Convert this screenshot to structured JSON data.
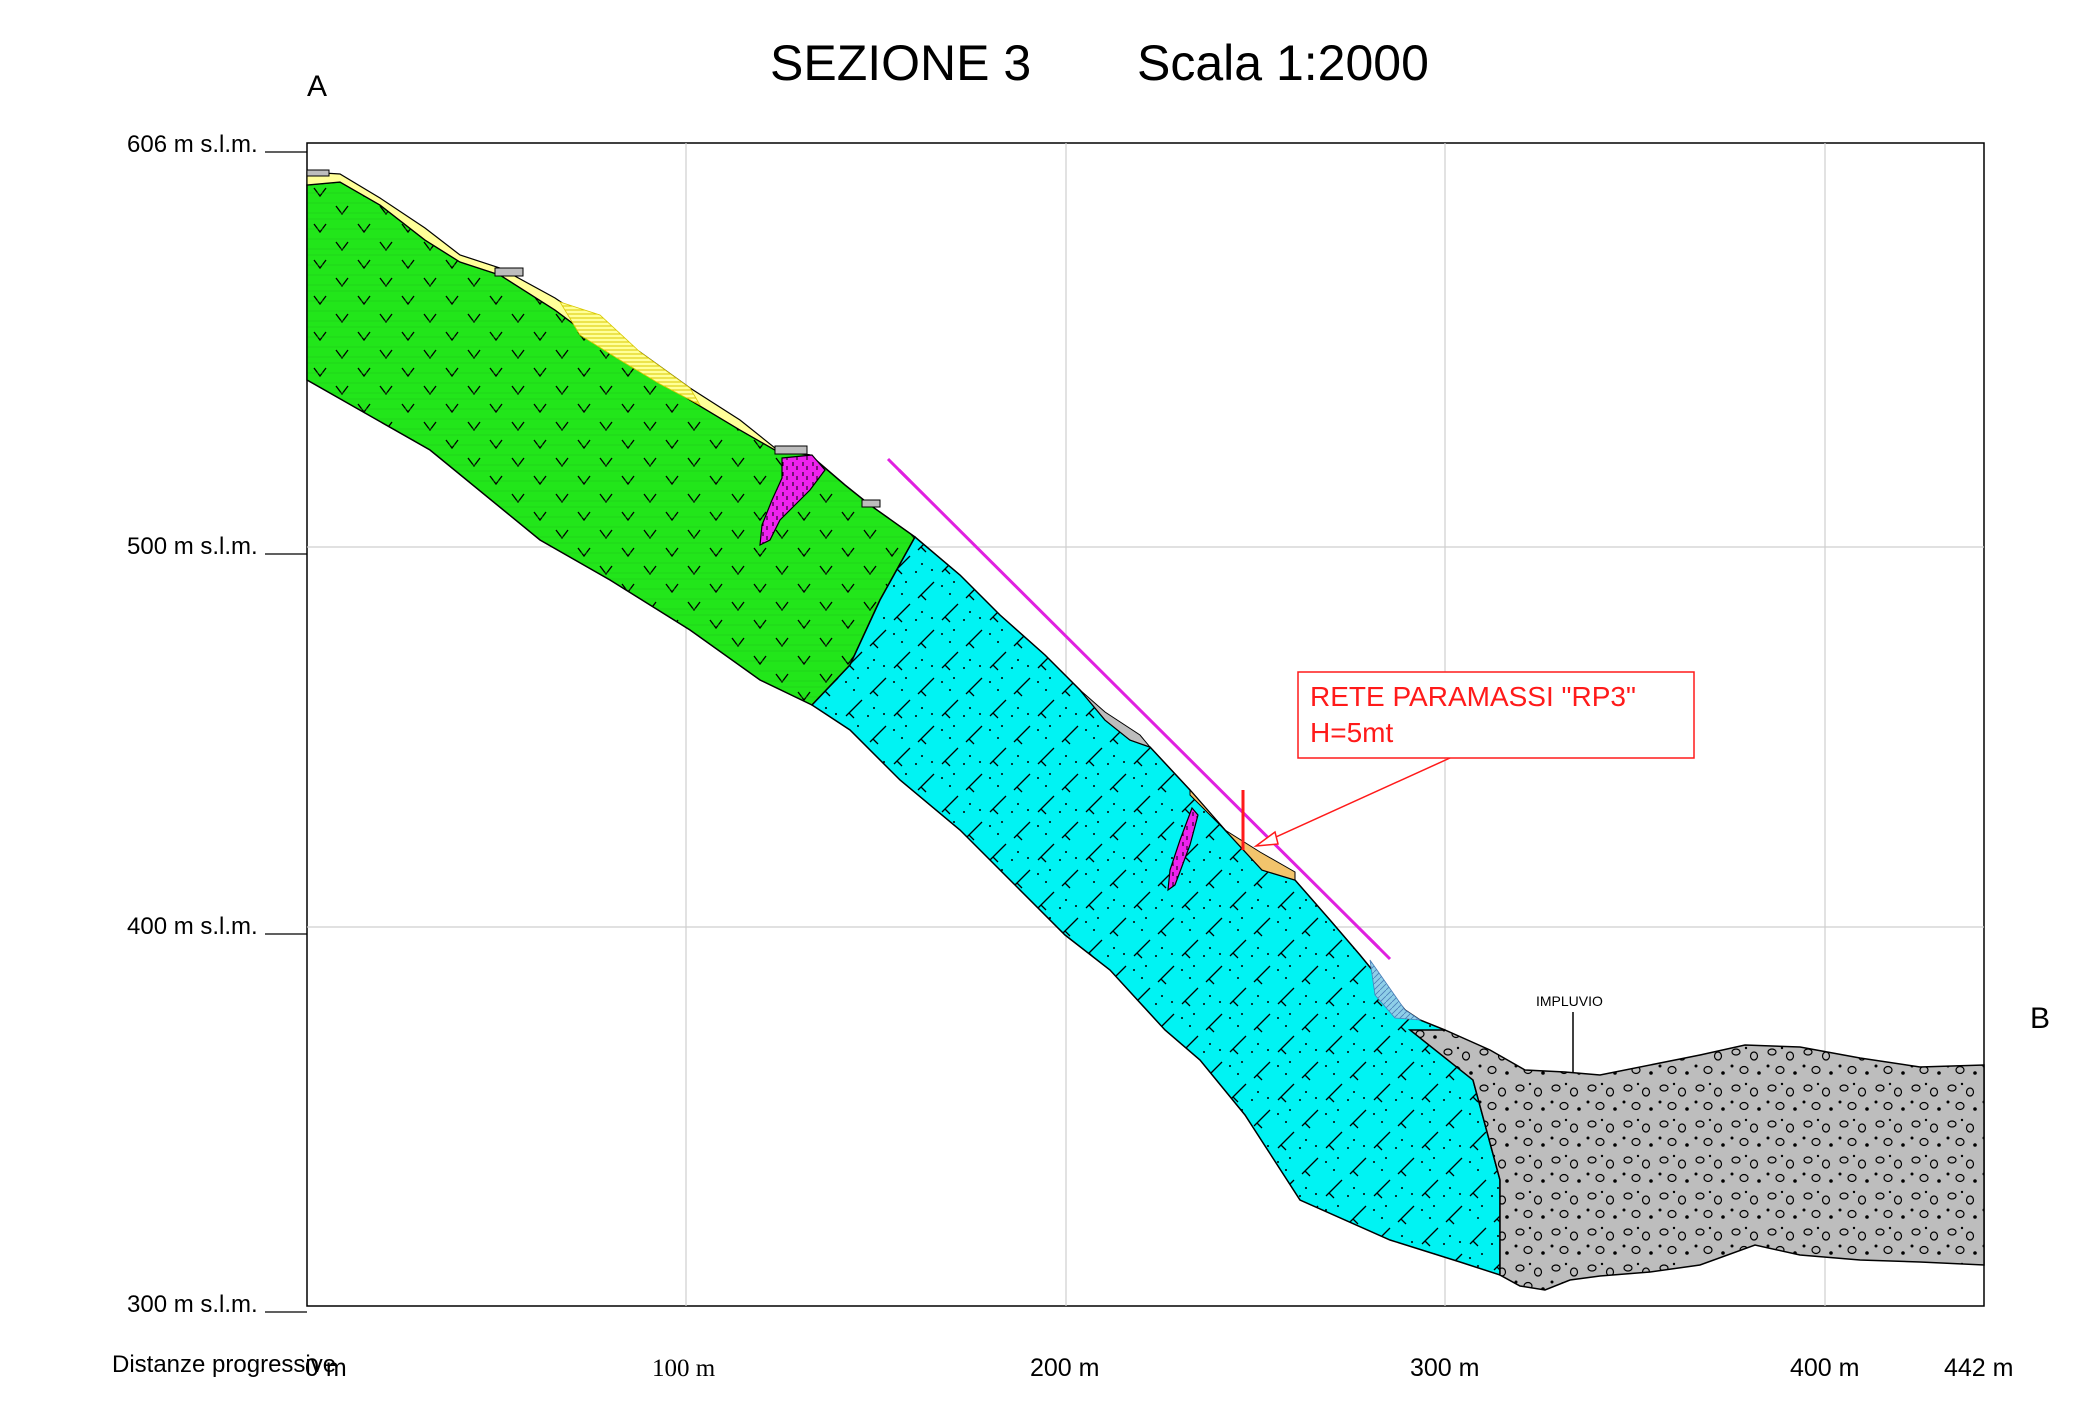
{
  "title": "SEZIONE 3",
  "scale": "Scala 1:2000",
  "endpoint_start": "A",
  "endpoint_end": "B",
  "elevation_labels": [
    "606 m s.l.m.",
    "500 m s.l.m.",
    "400 m s.l.m.",
    "300 m s.l.m."
  ],
  "distance_caption": "Distanze progressive",
  "distance_labels": [
    "0 m",
    "100 m",
    "200 m",
    "300 m",
    "400 m",
    "442 m"
  ],
  "callout": {
    "line1": "RETE PARAMASSI \"RP3\"",
    "line2": "H=5mt"
  },
  "impluvio_label": "IMPLUVIO",
  "colors": {
    "green_unit": "#22e61a",
    "cyan_unit": "#00f3f3",
    "magenta_unit": "#ee22ee",
    "yellow_cover": "#ffff99",
    "gravel_unit": "#bdbdbd",
    "net_line": "#e020e0",
    "callout_red": "#ff1a1a"
  }
}
